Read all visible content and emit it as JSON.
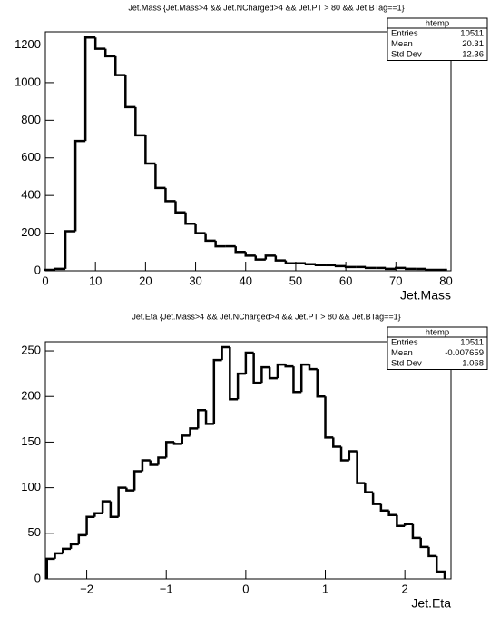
{
  "chart_data": [
    {
      "type": "histogram",
      "title": "Jet.Mass {Jet.Mass>4 && Jet.NCharged>4 && Jet.PT > 80 && Jet.BTag==1}",
      "x_label": "Jet.Mass",
      "bins": [
        0,
        2,
        4,
        6,
        8,
        10,
        12,
        14,
        16,
        18,
        20,
        22,
        24,
        26,
        28,
        30,
        32,
        34,
        36,
        38,
        40,
        42,
        44,
        46,
        48,
        50,
        52,
        54,
        56,
        58,
        60,
        62,
        64,
        66,
        68,
        70,
        72,
        74,
        76,
        78,
        80
      ],
      "values": [
        5,
        10,
        210,
        690,
        1240,
        1180,
        1140,
        1040,
        870,
        720,
        570,
        440,
        370,
        310,
        250,
        200,
        160,
        130,
        130,
        100,
        80,
        60,
        80,
        55,
        40,
        40,
        35,
        30,
        30,
        25,
        20,
        20,
        15,
        15,
        10,
        15,
        10,
        10,
        5,
        5
      ],
      "color": "#000000",
      "xlim": [
        0,
        81
      ],
      "xticks": [
        0,
        10,
        20,
        30,
        40,
        50,
        60,
        70,
        80
      ],
      "ylim": [
        0,
        1270
      ],
      "yticks": [
        0,
        200,
        400,
        600,
        800,
        1000,
        1200
      ],
      "stats": {
        "title": "htemp",
        "rows": [
          {
            "label": "Entries",
            "value": 10511
          },
          {
            "label": "Mean",
            "value": 20.31
          },
          {
            "label": "Std Dev",
            "value": 12.36
          }
        ]
      }
    },
    {
      "type": "histogram",
      "title": "Jet.Eta {Jet.Mass>4 && Jet.NCharged>4 && Jet.PT > 80 && Jet.BTag==1}",
      "x_label": "Jet.Eta",
      "bins": [
        -2.5,
        -2.4,
        -2.3,
        -2.2,
        -2.1,
        -2,
        -1.9,
        -1.8,
        -1.7,
        -1.6,
        -1.5,
        -1.4,
        -1.3,
        -1.2,
        -1.1,
        -1,
        -0.9,
        -0.8,
        -0.7,
        -0.6,
        -0.5,
        -0.4,
        -0.3,
        -0.2,
        -0.1,
        0,
        0.1,
        0.2,
        0.3,
        0.4,
        0.5,
        0.6,
        0.7,
        0.8,
        0.9,
        1,
        1.1,
        1.2,
        1.3,
        1.4,
        1.5,
        1.6,
        1.7,
        1.8,
        1.9,
        2,
        2.1,
        2.2,
        2.3,
        2.4,
        2.5
      ],
      "values": [
        22,
        28,
        33,
        38,
        48,
        68,
        72,
        85,
        68,
        100,
        97,
        118,
        130,
        125,
        133,
        150,
        148,
        157,
        165,
        185,
        170,
        240,
        254,
        197,
        225,
        248,
        215,
        232,
        220,
        235,
        233,
        205,
        235,
        230,
        200,
        155,
        145,
        130,
        140,
        105,
        95,
        82,
        75,
        70,
        58,
        60,
        45,
        35,
        25,
        8
      ],
      "color": "#000000",
      "xlim": [
        -2.52,
        2.58
      ],
      "xticks": [
        {
          "value": -2,
          "label": "−2"
        },
        {
          "value": -1,
          "label": "−1"
        },
        0,
        1,
        2
      ],
      "ylim": [
        0,
        260
      ],
      "yticks": [
        0,
        50,
        100,
        150,
        200,
        250
      ],
      "stats": {
        "title": "htemp",
        "rows": [
          {
            "label": "Entries",
            "value": 10511
          },
          {
            "label": "Mean",
            "value": -0.007659
          },
          {
            "label": "Std Dev",
            "value": 1.068
          }
        ]
      }
    }
  ]
}
